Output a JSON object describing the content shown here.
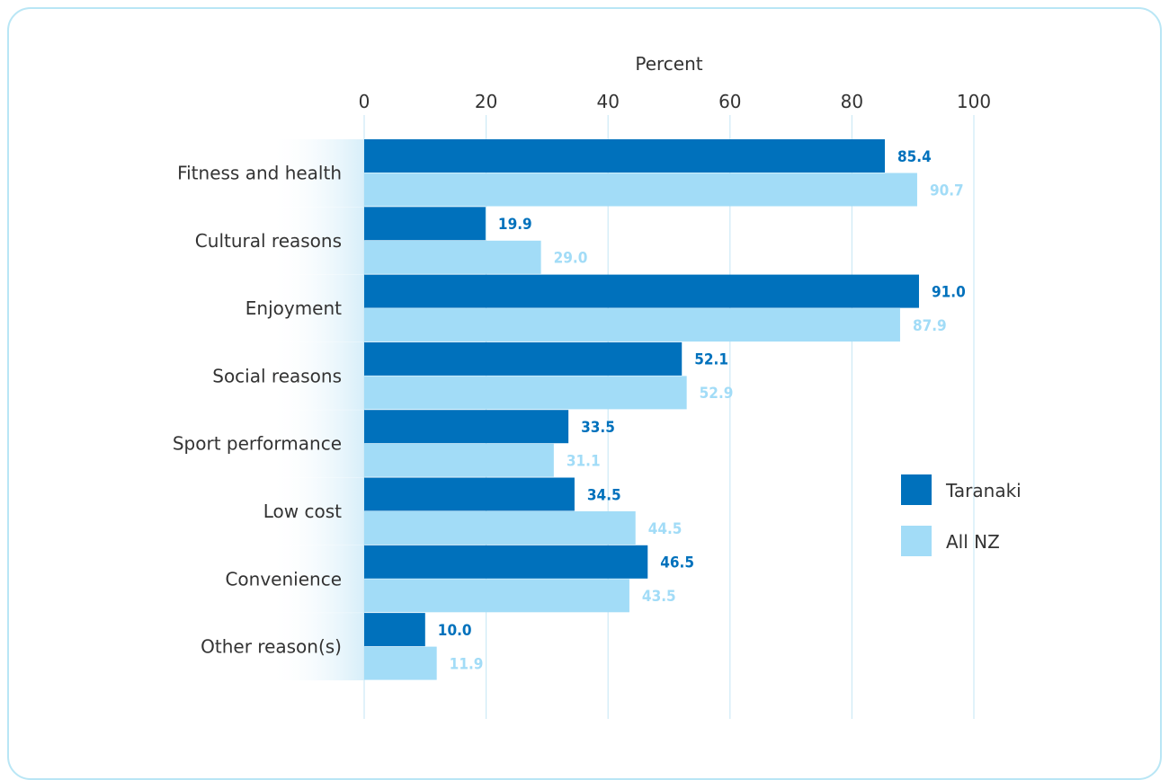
{
  "chart_data": {
    "type": "bar",
    "orientation": "horizontal",
    "xlabel": "Percent",
    "xlim": [
      0,
      100
    ],
    "xticks": [
      "0",
      "20",
      "40",
      "60",
      "80",
      "100"
    ],
    "grid": true,
    "legend_position": "right",
    "categories": [
      "Fitness and health",
      "Cultural reasons",
      "Enjoyment",
      "Social reasons",
      "Sport performance",
      "Low cost",
      "Convenience",
      "Other reason(s)"
    ],
    "series": [
      {
        "name": "Taranaki",
        "color": "#0071bc",
        "values": [
          85.4,
          19.9,
          91.0,
          52.1,
          33.5,
          34.5,
          46.5,
          10.0
        ],
        "labels": [
          "85.4",
          "19.9",
          "91.0",
          "52.1",
          "33.5",
          "34.5",
          "46.5",
          "10.0"
        ]
      },
      {
        "name": "All NZ",
        "color": "#a2dcf7",
        "values": [
          90.7,
          29.0,
          87.9,
          52.9,
          31.1,
          44.5,
          43.5,
          11.9
        ],
        "labels": [
          "90.7",
          "29.0",
          "87.9",
          "52.9",
          "31.1",
          "44.5",
          "43.5",
          "11.9"
        ]
      }
    ]
  }
}
